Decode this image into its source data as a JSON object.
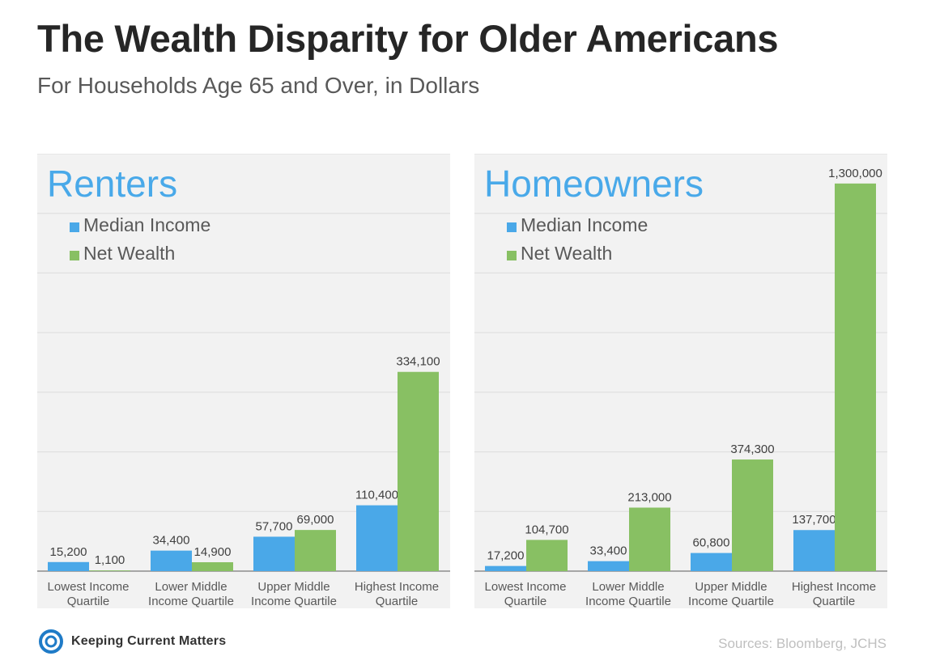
{
  "header": {
    "title": "The Wealth Disparity for Older Americans",
    "subtitle": "For Households Age 65 and Over, in Dollars"
  },
  "footer": {
    "brand": "Keeping Current Matters",
    "sources": "Sources: Bloomberg, JCHS"
  },
  "colors": {
    "median_income": "#4aa8e8",
    "net_wealth": "#88c063",
    "chart_title": "#49a9e9",
    "panel_bg": "#f2f2f2"
  },
  "chart_data": [
    {
      "type": "bar",
      "title": "Renters",
      "categories": [
        [
          "Lowest Income",
          "Quartile"
        ],
        [
          "Lower Middle",
          "Income Quartile"
        ],
        [
          "Upper Middle",
          "Income Quartile"
        ],
        [
          "Highest Income",
          "Quartile"
        ]
      ],
      "series": [
        {
          "name": "Median Income",
          "values": [
            15200,
            34400,
            57700,
            110400
          ],
          "labels": [
            "15,200",
            "34,400",
            "57,700",
            "110,400"
          ]
        },
        {
          "name": "Net Wealth",
          "values": [
            1100,
            14900,
            69000,
            334100
          ],
          "labels": [
            "1,100",
            "14,900",
            "69,000",
            "334,100"
          ]
        }
      ],
      "ylim": [
        0,
        700000
      ],
      "grid": true,
      "legend": "top-left"
    },
    {
      "type": "bar",
      "title": "Homeowners",
      "categories": [
        [
          "Lowest Income",
          "Quartile"
        ],
        [
          "Lower Middle",
          "Income Quartile"
        ],
        [
          "Upper Middle",
          "Income Quartile"
        ],
        [
          "Highest Income",
          "Quartile"
        ]
      ],
      "series": [
        {
          "name": "Median Income",
          "values": [
            17200,
            33400,
            60800,
            137700
          ],
          "labels": [
            "17,200",
            "33,400",
            "60,800",
            "137,700"
          ]
        },
        {
          "name": "Net Wealth",
          "values": [
            104700,
            213000,
            374300,
            1300000
          ],
          "labels": [
            "104,700",
            "213,000",
            "374,300",
            "1,300,000"
          ]
        }
      ],
      "ylim": [
        0,
        1400000
      ],
      "grid": true,
      "legend": "top-left"
    }
  ]
}
